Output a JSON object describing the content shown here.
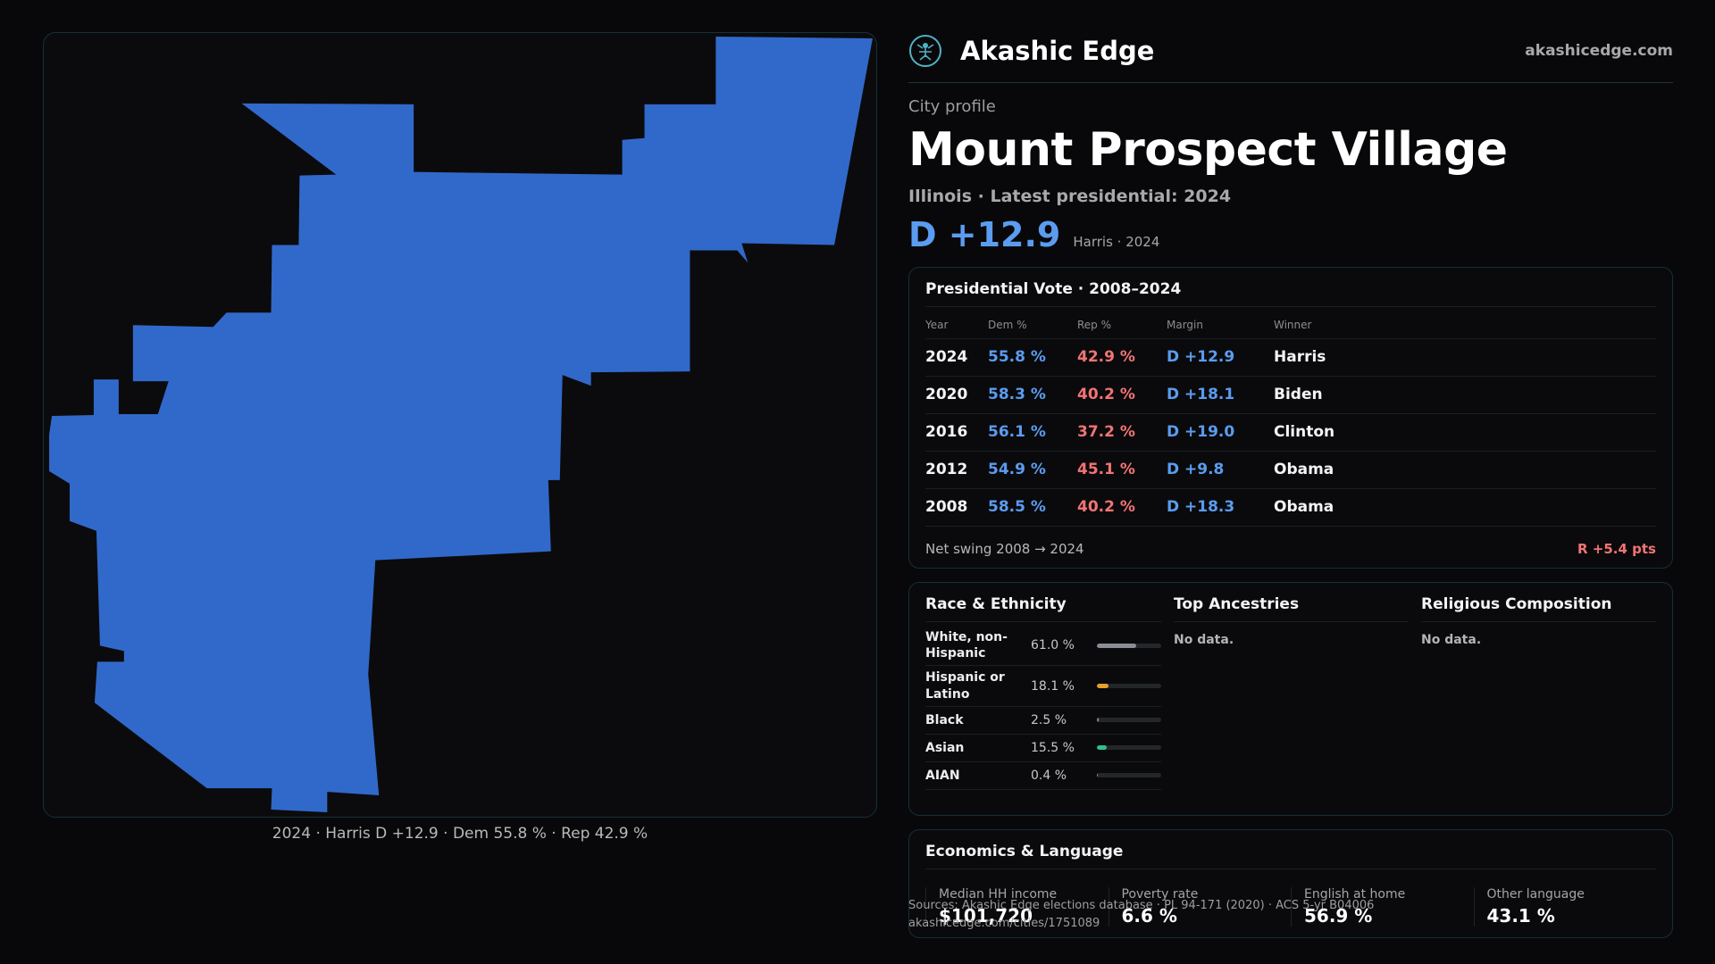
{
  "brand": {
    "name": "Akashic Edge",
    "url": "akashicedge.com"
  },
  "header": {
    "eyebrow": "City profile",
    "title": "Mount Prospect Village",
    "subtitle": "Illinois · Latest presidential: 2024",
    "margin": "D +12.9",
    "margin_note": "Harris · 2024"
  },
  "map": {
    "caption": "2024 · Harris D +12.9 · Dem 55.8 % · Rep 42.9 %",
    "fill_color": "#3169cb"
  },
  "presidential": {
    "title": "Presidential Vote · 2008–2024",
    "headers": [
      "Year",
      "Dem %",
      "Rep %",
      "Margin",
      "Winner"
    ],
    "rows": [
      {
        "year": "2024",
        "dem": "55.8 %",
        "rep": "42.9 %",
        "margin": "D +12.9",
        "winner": "Harris"
      },
      {
        "year": "2020",
        "dem": "58.3 %",
        "rep": "40.2 %",
        "margin": "D +18.1",
        "winner": "Biden"
      },
      {
        "year": "2016",
        "dem": "56.1 %",
        "rep": "37.2 %",
        "margin": "D +19.0",
        "winner": "Clinton"
      },
      {
        "year": "2012",
        "dem": "54.9 %",
        "rep": "45.1 %",
        "margin": "D +9.8",
        "winner": "Obama"
      },
      {
        "year": "2008",
        "dem": "58.5 %",
        "rep": "40.2 %",
        "margin": "D +18.3",
        "winner": "Obama"
      }
    ],
    "swing_label": "Net swing 2008 → 2024",
    "swing_value": "R +5.4 pts"
  },
  "race": {
    "title": "Race & Ethnicity",
    "rows": [
      {
        "label": "White, non-Hispanic",
        "value": "61.0 %",
        "pct": 61.0,
        "color": "#8a8d95"
      },
      {
        "label": "Hispanic or Latino",
        "value": "18.1 %",
        "pct": 18.1,
        "color": "#e6a02a"
      },
      {
        "label": "Black",
        "value": "2.5 %",
        "pct": 2.5,
        "color": "#8a8d95"
      },
      {
        "label": "Asian",
        "value": "15.5 %",
        "pct": 15.5,
        "color": "#2fbf8a"
      },
      {
        "label": "AIAN",
        "value": "0.4 %",
        "pct": 0.4,
        "color": "#8a8d95"
      }
    ]
  },
  "ancestries": {
    "title": "Top Ancestries",
    "empty": "No data."
  },
  "religion": {
    "title": "Religious Composition",
    "empty": "No data."
  },
  "economics": {
    "title": "Economics & Language",
    "cells": [
      {
        "label": "Median HH income",
        "value": "$101,720"
      },
      {
        "label": "Poverty rate",
        "value": "6.6 %"
      },
      {
        "label": "English at home",
        "value": "56.9 %"
      },
      {
        "label": "Other language",
        "value": "43.1 %"
      }
    ]
  },
  "sources": {
    "line1": "Sources: Akashic Edge elections database · PL 94-171 (2020) · ACS 5-yr B04006",
    "line2": "akashicedge.com/cities/1751089"
  }
}
